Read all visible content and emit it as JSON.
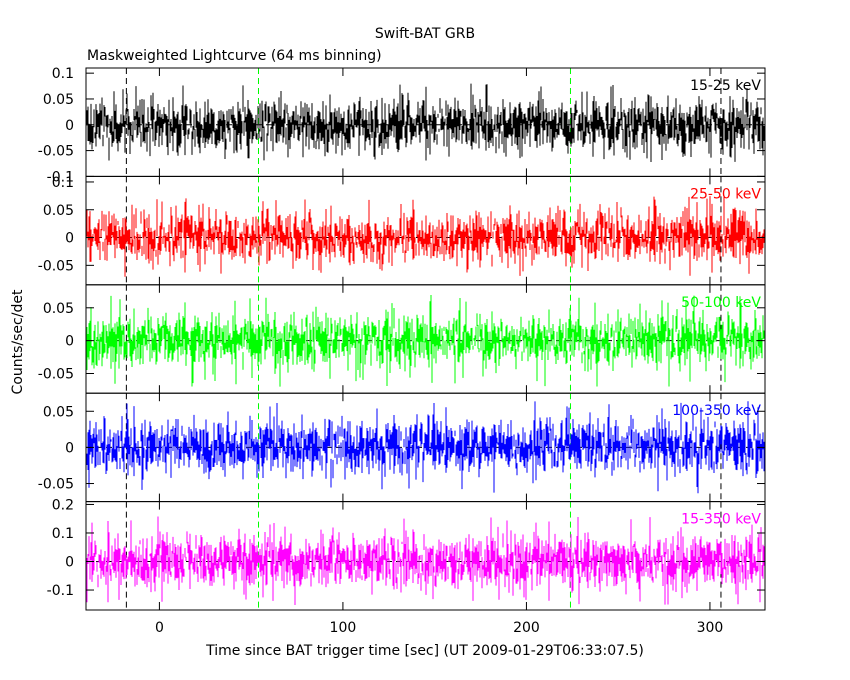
{
  "chart_data": {
    "type": "line",
    "title": "Swift-BAT GRB",
    "subtitle": "Maskweighted Lightcurve (64 ms binning)",
    "xlabel": "Time since BAT trigger time [sec] (UT 2009-01-29T06:33:07.5)",
    "ylabel": "Counts/sec/det",
    "xlim": [
      -40,
      330
    ],
    "xticks": [
      0,
      100,
      200,
      300
    ],
    "x_tick_labels": [
      "0",
      "100",
      "200",
      "300"
    ],
    "samples_per_panel": 680,
    "panels": [
      {
        "name": "15-25 keV",
        "color": "#000000",
        "ylim": [
          -0.1,
          0.11
        ],
        "yticks": [
          -0.1,
          -0.05,
          0,
          0.05,
          0.1
        ],
        "ytick_labels": [
          "-0.1",
          "-0.05",
          "0",
          "0.05",
          "0.1"
        ],
        "mean": 0.0,
        "noise_amplitude": 0.028,
        "peak_min": -0.07,
        "peak_max": 0.08
      },
      {
        "name": "25-50 keV",
        "color": "#ff0000",
        "ylim": [
          -0.085,
          0.11
        ],
        "yticks": [
          -0.05,
          0,
          0.05,
          0.1
        ],
        "ytick_labels": [
          "-0.05",
          "0",
          "0.05",
          "0.1"
        ],
        "mean": 0.0,
        "noise_amplitude": 0.025,
        "peak_min": -0.072,
        "peak_max": 0.075
      },
      {
        "name": "50-100 keV",
        "color": "#00ff00",
        "ylim": [
          -0.08,
          0.085
        ],
        "yticks": [
          -0.05,
          0,
          0.05
        ],
        "ytick_labels": [
          "-0.05",
          "0",
          "0.05"
        ],
        "mean": 0.0,
        "noise_amplitude": 0.022,
        "peak_min": -0.07,
        "peak_max": 0.07
      },
      {
        "name": "100-350 keV",
        "color": "#0000ff",
        "ylim": [
          -0.075,
          0.075
        ],
        "yticks": [
          -0.05,
          0,
          0.05
        ],
        "ytick_labels": [
          "-0.05",
          "0",
          "0.05"
        ],
        "mean": 0.0,
        "noise_amplitude": 0.02,
        "peak_min": -0.065,
        "peak_max": 0.065
      },
      {
        "name": "15-350 keV",
        "color": "#ff00ff",
        "ylim": [
          -0.17,
          0.21
        ],
        "yticks": [
          -0.1,
          0,
          0.1,
          0.2
        ],
        "ytick_labels": [
          "-0.1",
          "0",
          "0.1",
          "0.2"
        ],
        "mean": 0.0,
        "noise_amplitude": 0.05,
        "peak_min": -0.16,
        "peak_max": 0.16
      }
    ],
    "vertical_markers": [
      {
        "x": -18,
        "color": "#000000",
        "style": "dashed"
      },
      {
        "x": 54,
        "color": "#00ff00",
        "style": "dashed"
      },
      {
        "x": 224,
        "color": "#00ff00",
        "style": "dashed"
      },
      {
        "x": 306,
        "color": "#000000",
        "style": "dashed"
      }
    ],
    "zero_line": {
      "color": "#000000",
      "style": "dashed"
    },
    "grid": false
  }
}
